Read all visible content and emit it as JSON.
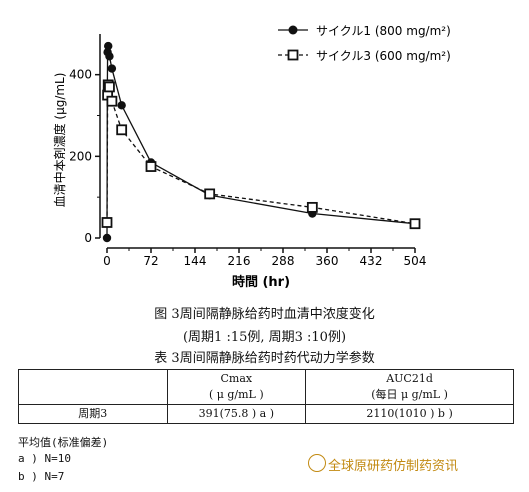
{
  "chart_data": {
    "type": "line",
    "xlabel": "時間 (hr)",
    "ylabel": "血清中本剤濃度 (μg/mL)",
    "xlim": [
      0,
      504
    ],
    "ylim": [
      0,
      480
    ],
    "xticks": [
      0,
      72,
      144,
      216,
      288,
      360,
      432,
      504
    ],
    "yticks": [
      0,
      200,
      400
    ],
    "legend_position": "top-right",
    "series": [
      {
        "name": "サイクル1 (800 mg/m²)",
        "marker": "filled-circle",
        "line": "solid",
        "x": [
          0,
          0.5,
          1,
          2,
          4,
          8,
          24,
          72,
          168,
          336,
          504
        ],
        "y": [
          0,
          360,
          455,
          470,
          445,
          415,
          325,
          185,
          105,
          60,
          35
        ]
      },
      {
        "name": "サイクル3 (600 mg/m²)",
        "marker": "open-square",
        "line": "dashed",
        "x": [
          0,
          1,
          2,
          4,
          8,
          24,
          72,
          168,
          336,
          504
        ],
        "y": [
          38,
          350,
          375,
          370,
          335,
          265,
          175,
          108,
          75,
          35
        ]
      }
    ]
  },
  "figure_caption": "图   3周间隔静脉给药时血清中浓度变化",
  "figure_subcaption": "(周期1 :15例, 周期3 :10例)",
  "table_caption": "表   3周间隔静脉给药时药代动力学参数",
  "table": {
    "headers": [
      "",
      "Cmax\n( μ g/mL )",
      "AUC21d\n(每日 μ g/mL )"
    ],
    "rows": [
      [
        "周期3",
        "391(75.8 )  a )",
        "2110(1010 )  b )"
      ]
    ]
  },
  "notes": [
    "平均值(标准偏差)",
    "a ) N=10",
    "b ) N=7"
  ],
  "watermark": "全球原研药仿制药资讯",
  "colors": {
    "ink": "#111111",
    "watermark": "#c28a12"
  }
}
